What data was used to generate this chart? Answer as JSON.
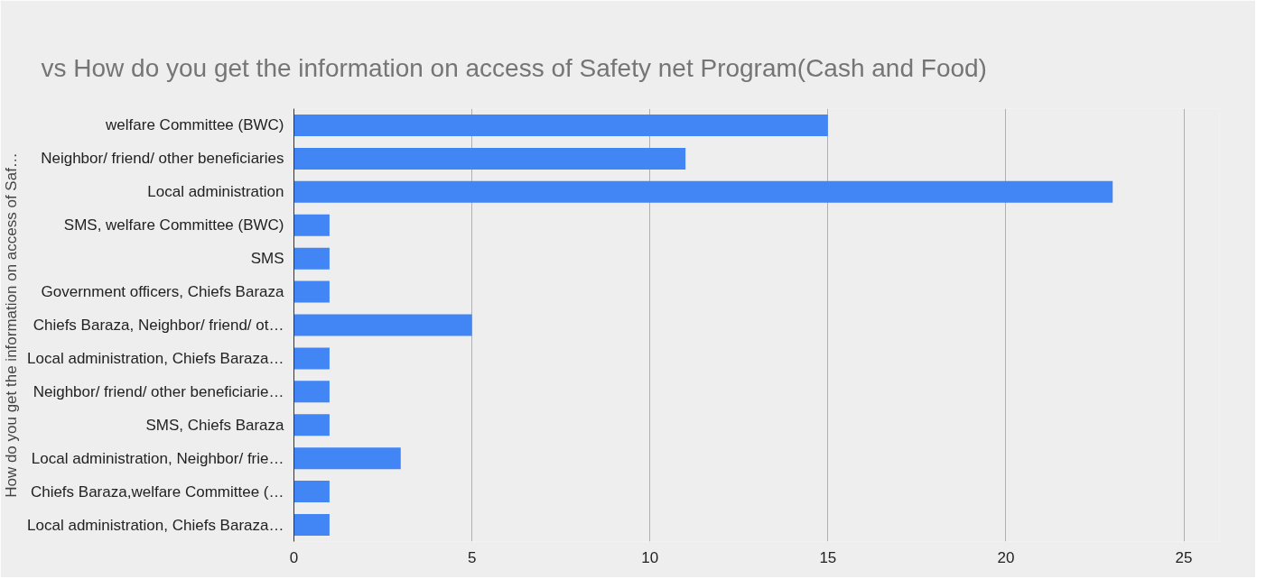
{
  "chart_data": {
    "type": "bar",
    "orientation": "horizontal",
    "title": "vs How do you get the information on access of Safety net Program(Cash and Food)",
    "ylabel": "How do you get the information on access of Saf…",
    "categories": [
      "welfare Committee (BWC)",
      "Neighbor/ friend/ other beneficiaries",
      "Local administration",
      "SMS, welfare Committee (BWC)",
      "SMS",
      "Government officers, Chiefs Baraza",
      "Chiefs Baraza, Neighbor/ friend/ ot…",
      "Local administration, Chiefs Baraza…",
      "Neighbor/ friend/ other beneficiarie…",
      "SMS, Chiefs Baraza",
      "Local administration, Neighbor/ frie…",
      "Chiefs Baraza,welfare Committee (…",
      "Local administration, Chiefs Baraza…"
    ],
    "values": [
      15,
      11,
      23,
      1,
      1,
      1,
      5,
      1,
      1,
      1,
      3,
      1,
      1
    ],
    "color": "#4285f4",
    "xlim": [
      0,
      26
    ],
    "xticks": [
      0,
      5,
      10,
      15,
      20,
      25
    ],
    "grid": "x"
  }
}
